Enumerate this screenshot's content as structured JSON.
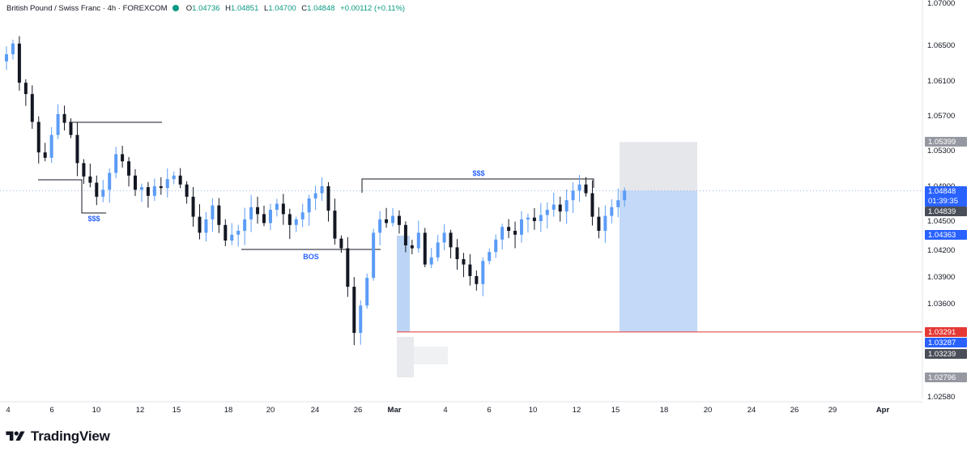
{
  "legend": {
    "symbol": "British Pound / Swiss Franc · 4h · FOREXCOM",
    "o_label": "O",
    "o_value": "1.04736",
    "h_label": "H",
    "h_value": "1.04851",
    "l_label": "L",
    "l_value": "1.04700",
    "c_label": "C",
    "c_value": "1.04848",
    "change": "+0.00112 (+0.11%)"
  },
  "brand": {
    "name": "TradingView"
  },
  "colors": {
    "up": "#5b9cf6",
    "down": "#131722",
    "last_price": "#2962ff",
    "stop_line": "#e53935",
    "target_zone": "#bcd5f6",
    "stop_zone": "#e0e3e8"
  },
  "chart_data": {
    "type": "candlestick",
    "title": "British Pound / Swiss Franc · 4h · FOREXCOM",
    "ylim": [
      1.0258,
      1.07
    ],
    "y_ticks": [
      "1.07000",
      "1.06500",
      "1.06100",
      "1.05700",
      "1.05300",
      "1.04900",
      "1.04500",
      "1.04200",
      "1.03900",
      "1.03600",
      "1.02580"
    ],
    "x_ticks": [
      "4",
      "6",
      "10",
      "12",
      "15",
      "18",
      "20",
      "24",
      "26",
      "Mar",
      "4",
      "6",
      "10",
      "12",
      "15",
      "18",
      "20",
      "24",
      "26",
      "29",
      "Apr"
    ],
    "close_series": [
      1.064,
      1.0652,
      1.0608,
      1.0595,
      1.0563,
      1.0528,
      1.0522,
      1.0548,
      1.0572,
      1.0562,
      1.0548,
      1.0516,
      1.0501,
      1.0494,
      1.0478,
      1.0486,
      1.0505,
      1.0526,
      1.0518,
      1.0502,
      1.0486,
      1.0489,
      1.0479,
      1.049,
      1.0488,
      1.0498,
      1.0502,
      1.0492,
      1.0478,
      1.0455,
      1.0438,
      1.0452,
      1.0468,
      1.0446,
      1.043,
      1.0436,
      1.044,
      1.0452,
      1.0466,
      1.0458,
      1.0448,
      1.0463,
      1.047,
      1.0458,
      1.0446,
      1.0452,
      1.046,
      1.0476,
      1.0482,
      1.049,
      1.0462,
      1.0432,
      1.0422,
      1.0379,
      1.0328,
      1.0358,
      1.0389,
      1.0438,
      1.0452,
      1.0448,
      1.0456,
      1.0446,
      1.0425,
      1.0422,
      1.0438,
      1.0404,
      1.0412,
      1.0428,
      1.0438,
      1.0423,
      1.041,
      1.0404,
      1.0391,
      1.0382,
      1.0408,
      1.0418,
      1.0431,
      1.0444,
      1.044,
      1.0436,
      1.0452,
      1.0454,
      1.045,
      1.0457,
      1.0463,
      1.0469,
      1.0461,
      1.0474,
      1.0485,
      1.0492,
      1.0482,
      1.0455,
      1.044,
      1.0456,
      1.0466,
      1.0474,
      1.0485
    ],
    "levels": {
      "last_price": "1.04848",
      "countdown": "01:39:35",
      "entry": "1.04839",
      "level_low": "1.04363",
      "stop": "1.03291",
      "stop_blue": "1.03287",
      "stop_grey": "1.03239",
      "target": "1.05399",
      "low_extreme": "1.02796"
    },
    "annotations": [
      {
        "text": "$$$",
        "level": 1.0498
      },
      {
        "text": "$$$",
        "level": 1.0455
      },
      {
        "text": "BOS",
        "level": 1.0422
      }
    ]
  }
}
